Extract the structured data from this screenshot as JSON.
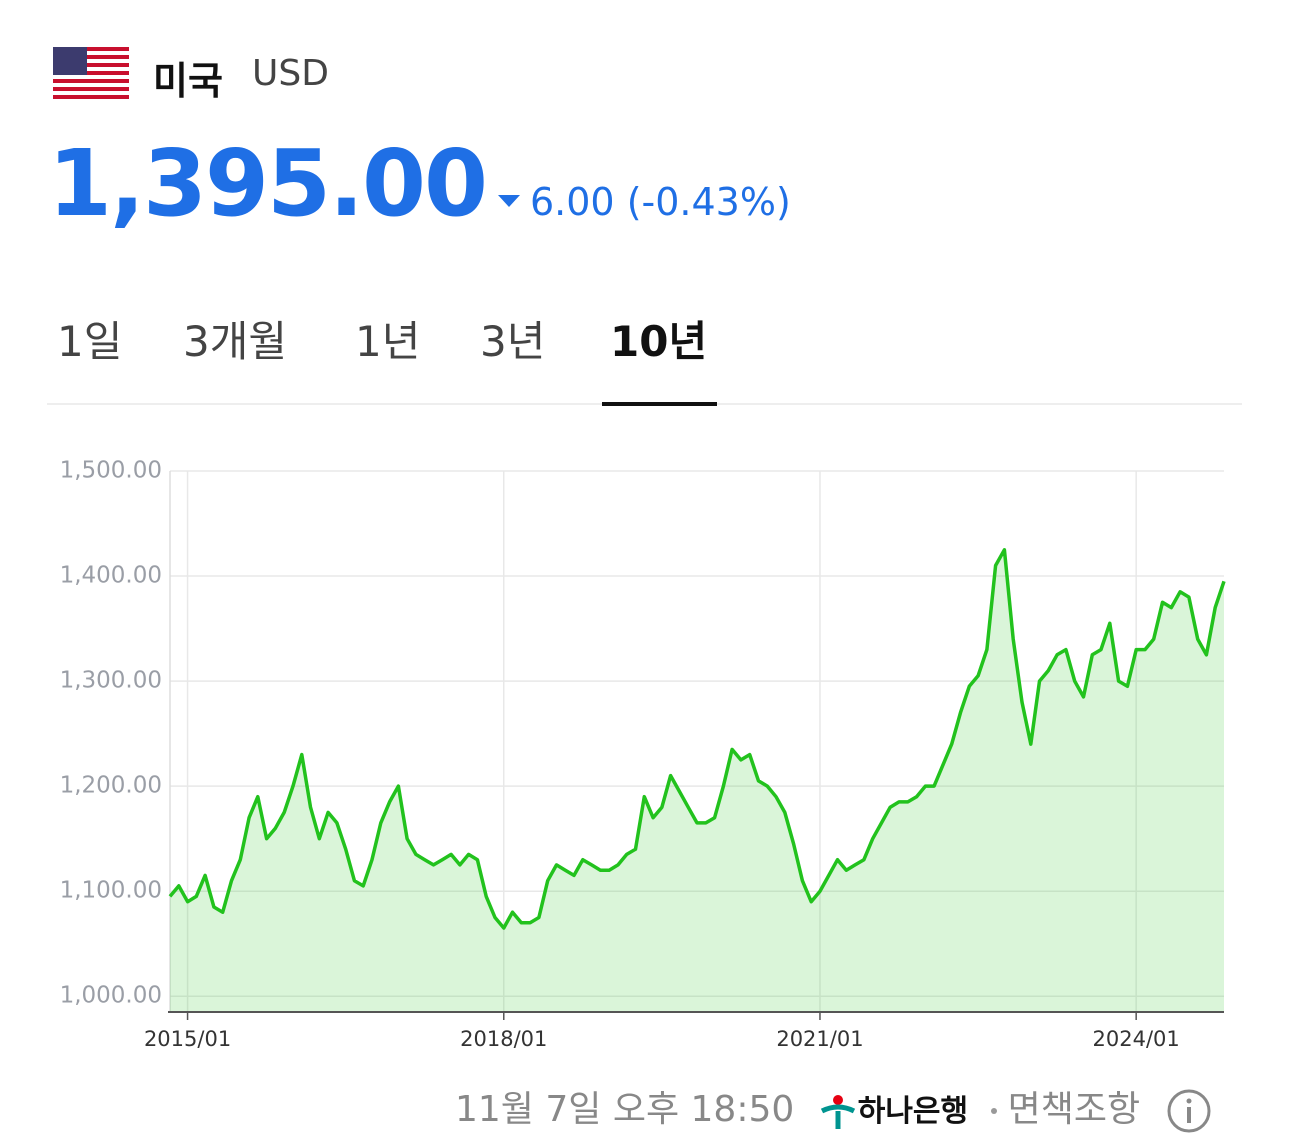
{
  "header": {
    "country": "미국",
    "currency": "USD"
  },
  "quote": {
    "price": "1,395.00",
    "change": "6.00 (-0.43%)"
  },
  "tabs": {
    "items": [
      "1일",
      "3개월",
      "1년",
      "3년",
      "10년"
    ],
    "selected": 4
  },
  "chart_data": {
    "type": "area",
    "x": [
      "2014/11",
      "2014/12",
      "2015/01",
      "2015/02",
      "2015/03",
      "2015/04",
      "2015/05",
      "2015/06",
      "2015/07",
      "2015/08",
      "2015/09",
      "2015/10",
      "2015/11",
      "2015/12",
      "2016/01",
      "2016/02",
      "2016/03",
      "2016/04",
      "2016/05",
      "2016/06",
      "2016/07",
      "2016/08",
      "2016/09",
      "2016/10",
      "2016/11",
      "2016/12",
      "2017/01",
      "2017/02",
      "2017/03",
      "2017/04",
      "2017/05",
      "2017/06",
      "2017/07",
      "2017/08",
      "2017/09",
      "2017/10",
      "2017/11",
      "2017/12",
      "2018/01",
      "2018/02",
      "2018/03",
      "2018/04",
      "2018/05",
      "2018/06",
      "2018/07",
      "2018/08",
      "2018/09",
      "2018/10",
      "2018/11",
      "2018/12",
      "2019/01",
      "2019/02",
      "2019/03",
      "2019/04",
      "2019/05",
      "2019/06",
      "2019/07",
      "2019/08",
      "2019/09",
      "2019/10",
      "2019/11",
      "2019/12",
      "2020/01",
      "2020/02",
      "2020/03",
      "2020/04",
      "2020/05",
      "2020/06",
      "2020/07",
      "2020/08",
      "2020/09",
      "2020/10",
      "2020/11",
      "2020/12",
      "2021/01",
      "2021/02",
      "2021/03",
      "2021/04",
      "2021/05",
      "2021/06",
      "2021/07",
      "2021/08",
      "2021/09",
      "2021/10",
      "2021/11",
      "2021/12",
      "2022/01",
      "2022/02",
      "2022/03",
      "2022/04",
      "2022/05",
      "2022/06",
      "2022/07",
      "2022/08",
      "2022/09",
      "2022/10",
      "2022/11",
      "2022/12",
      "2023/01",
      "2023/02",
      "2023/03",
      "2023/04",
      "2023/05",
      "2023/06",
      "2023/07",
      "2023/08",
      "2023/09",
      "2023/10",
      "2023/11",
      "2023/12",
      "2024/01",
      "2024/02",
      "2024/03",
      "2024/04",
      "2024/05",
      "2024/06",
      "2024/07",
      "2024/08",
      "2024/09",
      "2024/10",
      "2024/11"
    ],
    "series": [
      {
        "color": "#22c21d",
        "values": [
          1095,
          1105,
          1090,
          1095,
          1115,
          1085,
          1080,
          1110,
          1130,
          1170,
          1190,
          1150,
          1160,
          1175,
          1200,
          1230,
          1180,
          1150,
          1175,
          1165,
          1140,
          1110,
          1105,
          1130,
          1165,
          1185,
          1200,
          1150,
          1135,
          1130,
          1125,
          1130,
          1135,
          1125,
          1135,
          1130,
          1095,
          1075,
          1065,
          1080,
          1070,
          1070,
          1075,
          1110,
          1125,
          1120,
          1115,
          1130,
          1125,
          1120,
          1120,
          1125,
          1135,
          1140,
          1190,
          1170,
          1180,
          1210,
          1195,
          1180,
          1165,
          1165,
          1170,
          1200,
          1235,
          1225,
          1230,
          1205,
          1200,
          1190,
          1175,
          1145,
          1110,
          1090,
          1100,
          1115,
          1130,
          1120,
          1125,
          1130,
          1150,
          1165,
          1180,
          1185,
          1185,
          1190,
          1200,
          1200,
          1220,
          1240,
          1270,
          1295,
          1305,
          1330,
          1410,
          1425,
          1340,
          1280,
          1240,
          1300,
          1310,
          1325,
          1330,
          1300,
          1285,
          1325,
          1330,
          1355,
          1300,
          1295,
          1330,
          1330,
          1340,
          1375,
          1370,
          1385,
          1380,
          1340,
          1325,
          1370,
          1395
        ]
      }
    ],
    "ylim": [
      985,
      1500
    ],
    "yticks": [
      {
        "value": 1000,
        "label": "1,000.00"
      },
      {
        "value": 1100,
        "label": "1,100.00"
      },
      {
        "value": 1200,
        "label": "1,200.00"
      },
      {
        "value": 1300,
        "label": "1,300.00"
      },
      {
        "value": 1400,
        "label": "1,400.00"
      },
      {
        "value": 1500,
        "label": "1,500.00"
      }
    ],
    "xticks": [
      "2015/01",
      "2018/01",
      "2021/01",
      "2024/01"
    ],
    "grid": true
  },
  "footer": {
    "timestamp": "11월 7일 오후 18:50",
    "bank": "하나은행",
    "disclaimer": "면책조항"
  }
}
